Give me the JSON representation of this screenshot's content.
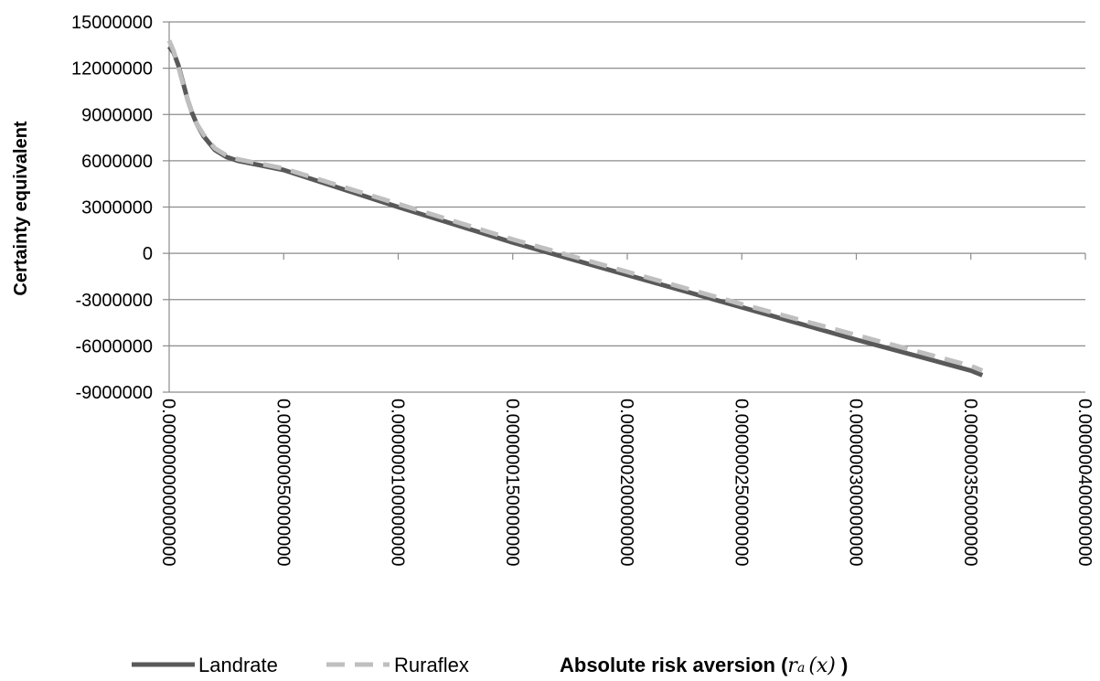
{
  "chart_data": {
    "type": "line",
    "title": "",
    "ylabel": "Certainty equivalent",
    "xlabel": {
      "prefix": "Absolute risk aversion (",
      "symbol": "r",
      "subscript": "a",
      "argument": "(x)",
      "suffix": " )"
    },
    "ylim": [
      -9000000,
      15000000
    ],
    "yticks": [
      15000000,
      12000000,
      9000000,
      6000000,
      3000000,
      0,
      -3000000,
      -6000000,
      -9000000
    ],
    "ytick_labels": [
      "15000000",
      "12000000",
      "9000000",
      "6000000",
      "3000000",
      "0",
      "-3000000",
      "-6000000",
      "-9000000"
    ],
    "xlim": [
      0,
      4e-07
    ],
    "xticks": [
      0,
      5e-08,
      1e-07,
      1.5e-07,
      2e-07,
      2.5e-07,
      3e-07,
      3.5e-07,
      4e-07
    ],
    "xtick_labels": [
      "0.000000000000000",
      "0.000000050000000",
      "0.000000100000000",
      "0.000000150000000",
      "0.000000200000000",
      "0.000000250000000",
      "0.000000300000000",
      "0.000000350000000",
      "0.000000400000000"
    ],
    "grid": "horizontal",
    "legend_position": "bottom-left",
    "series": [
      {
        "name": "Landrate",
        "color": "#595959",
        "dash": "solid",
        "x": [
          0,
          2e-09,
          4e-09,
          6e-09,
          8e-09,
          1e-08,
          1.2e-08,
          1.5e-08,
          2e-08,
          2.5e-08,
          3e-08,
          4e-08,
          5e-08,
          1e-07,
          1.5e-07,
          2e-07,
          2.5e-07,
          3e-07,
          3.5e-07,
          3.55e-07
        ],
        "values": [
          13400000,
          13000000,
          12200000,
          11100000,
          10000000,
          9100000,
          8400000,
          7600000,
          6700000,
          6250000,
          6000000,
          5700000,
          5400000,
          3000000,
          700000,
          -1400000,
          -3500000,
          -5600000,
          -7600000,
          -7900000
        ]
      },
      {
        "name": "Ruraflex",
        "color": "#bfbfbf",
        "dash": "dashed",
        "x": [
          0,
          2e-09,
          4e-09,
          6e-09,
          8e-09,
          1e-08,
          1.2e-08,
          1.5e-08,
          2e-08,
          2.5e-08,
          3e-08,
          4e-08,
          5e-08,
          1e-07,
          1.5e-07,
          2e-07,
          2.5e-07,
          3e-07,
          3.5e-07,
          3.55e-07
        ],
        "values": [
          13800000,
          13100000,
          12100000,
          11000000,
          10000000,
          9100000,
          8400000,
          7700000,
          6800000,
          6350000,
          6100000,
          5800000,
          5500000,
          3200000,
          900000,
          -1200000,
          -3300000,
          -5300000,
          -7300000,
          -7600000
        ]
      }
    ]
  }
}
